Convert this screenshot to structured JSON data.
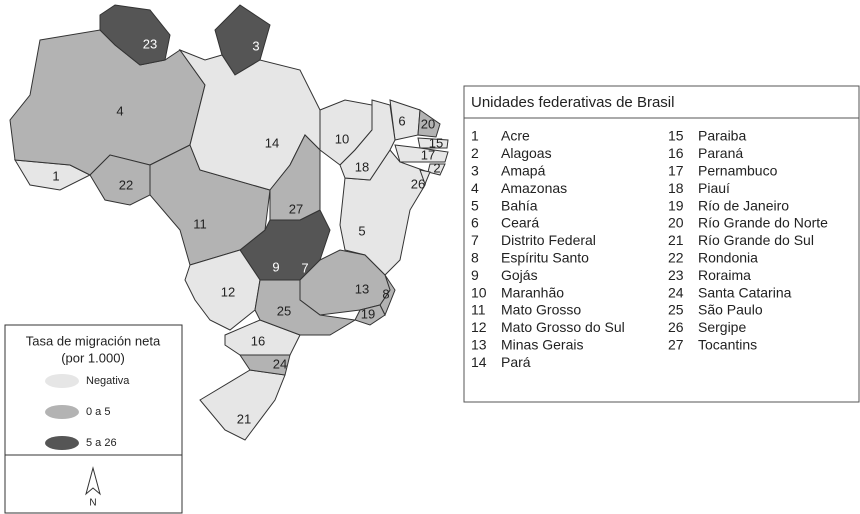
{
  "map": {
    "states": [
      {
        "label": 1,
        "color": "#e6e6e6"
      },
      {
        "label": 2,
        "color": "#e6e6e6"
      },
      {
        "label": 3,
        "color": "#555555"
      },
      {
        "label": 4,
        "color": "#b3b3b3"
      },
      {
        "label": 5,
        "color": "#e6e6e6"
      },
      {
        "label": 6,
        "color": "#e6e6e6"
      },
      {
        "label": 7,
        "color": "#555555"
      },
      {
        "label": 8,
        "color": "#b3b3b3"
      },
      {
        "label": 9,
        "color": "#555555"
      },
      {
        "label": 10,
        "color": "#e6e6e6"
      },
      {
        "label": 11,
        "color": "#b3b3b3"
      },
      {
        "label": 12,
        "color": "#e6e6e6"
      },
      {
        "label": 13,
        "color": "#b3b3b3"
      },
      {
        "label": 14,
        "color": "#e6e6e6"
      },
      {
        "label": 15,
        "color": "#e6e6e6"
      },
      {
        "label": 16,
        "color": "#e6e6e6"
      },
      {
        "label": 17,
        "color": "#e6e6e6"
      },
      {
        "label": 18,
        "color": "#e6e6e6"
      },
      {
        "label": 19,
        "color": "#b3b3b3"
      },
      {
        "label": 20,
        "color": "#b3b3b3"
      },
      {
        "label": 21,
        "color": "#e6e6e6"
      },
      {
        "label": 22,
        "color": "#b3b3b3"
      },
      {
        "label": 23,
        "color": "#555555"
      },
      {
        "label": 24,
        "color": "#b3b3b3"
      },
      {
        "label": 25,
        "color": "#b3b3b3"
      },
      {
        "label": 26,
        "color": "#e6e6e6"
      },
      {
        "label": 27,
        "color": "#b3b3b3"
      }
    ],
    "legend": {
      "title": "Tasa de migración neta",
      "subtitle": "(por 1.000)",
      "items": [
        {
          "label": "Negativa",
          "color": "#e6e6e6"
        },
        {
          "label": "0 a 5",
          "color": "#b3b3b3"
        },
        {
          "label": "5 a 26",
          "color": "#555555"
        }
      ]
    },
    "compass": "N",
    "list": {
      "title": "Unidades federativas de Brasil",
      "entries": [
        {
          "number": 1,
          "name": "Acre"
        },
        {
          "number": 2,
          "name": "Alagoas"
        },
        {
          "number": 3,
          "name": "Amapá"
        },
        {
          "number": 4,
          "name": "Amazonas"
        },
        {
          "number": 5,
          "name": "Bahía"
        },
        {
          "number": 6,
          "name": "Ceará"
        },
        {
          "number": 7,
          "name": "Distrito Federal"
        },
        {
          "number": 8,
          "name": "Espíritu Santo"
        },
        {
          "number": 9,
          "name": "Gojás"
        },
        {
          "number": 10,
          "name": "Maranhão"
        },
        {
          "number": 11,
          "name": "Mato Grosso"
        },
        {
          "number": 12,
          "name": "Mato Grosso do Sul"
        },
        {
          "number": 13,
          "name": "Minas Gerais"
        },
        {
          "number": 14,
          "name": "Pará"
        },
        {
          "number": 15,
          "name": "Paraiba"
        },
        {
          "number": 16,
          "name": "Paraná"
        },
        {
          "number": 17,
          "name": "Pernambuco"
        },
        {
          "number": 18,
          "name": "Piauí"
        },
        {
          "number": 19,
          "name": "Río de Janeiro"
        },
        {
          "number": 20,
          "name": "Río Grande do Norte"
        },
        {
          "number": 21,
          "name": "Río Grande do Sul"
        },
        {
          "number": 22,
          "name": "Rondonia"
        },
        {
          "number": 23,
          "name": "Roraima"
        },
        {
          "number": 24,
          "name": "Santa Catarina"
        },
        {
          "number": 25,
          "name": "São Paulo"
        },
        {
          "number": 26,
          "name": "Sergipe"
        },
        {
          "number": 27,
          "name": "Tocantins"
        }
      ]
    }
  }
}
